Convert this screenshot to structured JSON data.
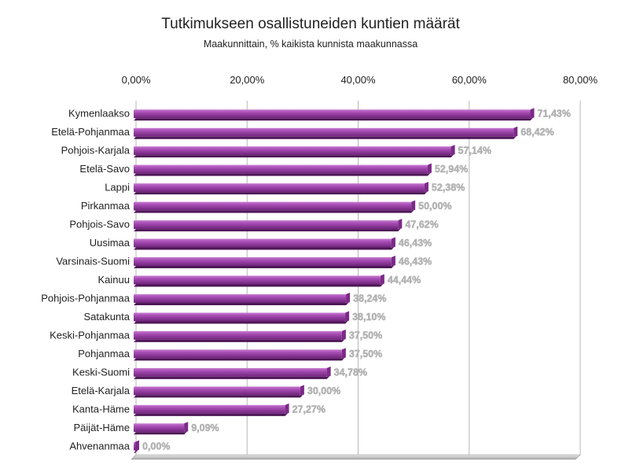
{
  "chart_data": {
    "type": "bar",
    "orientation": "horizontal",
    "title": "Tutkimukseen osallistuneiden kuntien määrät",
    "subtitle": "Maakunnittain, % kaikista kunnista maakunnassa",
    "xlim": [
      0,
      80
    ],
    "ticks": [
      0,
      20,
      40,
      60,
      80
    ],
    "tick_labels": [
      "0,00%",
      "20,00%",
      "40,00%",
      "60,00%",
      "80,00%"
    ],
    "axis_position": "top",
    "grid": true,
    "bar_color": "#9b3fa6",
    "categories": [
      "Kymenlaakso",
      "Etelä-Pohjanmaa",
      "Pohjois-Karjala",
      "Etelä-Savo",
      "Lappi",
      "Pirkanmaa",
      "Pohjois-Savo",
      "Uusimaa",
      "Varsinais-Suomi",
      "Kainuu",
      "Pohjois-Pohjanmaa",
      "Satakunta",
      "Keski-Pohjanmaa",
      "Pohjanmaa",
      "Keski-Suomi",
      "Etelä-Karjala",
      "Kanta-Häme",
      "Päijät-Häme",
      "Ahvenanmaa"
    ],
    "values": [
      71.43,
      68.42,
      57.14,
      52.94,
      52.38,
      50.0,
      47.62,
      46.43,
      46.43,
      44.44,
      38.24,
      38.1,
      37.5,
      37.5,
      34.78,
      30.0,
      27.27,
      9.09,
      0.0
    ],
    "data_labels": [
      "71,43%",
      "68,42%",
      "57,14%",
      "52,94%",
      "52,38%",
      "50,00%",
      "47,62%",
      "46,43%",
      "46,43%",
      "44,44%",
      "38,24%",
      "38,10%",
      "37,50%",
      "37,50%",
      "34,78%",
      "30,00%",
      "27,27%",
      "9,09%",
      "0,00%"
    ]
  }
}
